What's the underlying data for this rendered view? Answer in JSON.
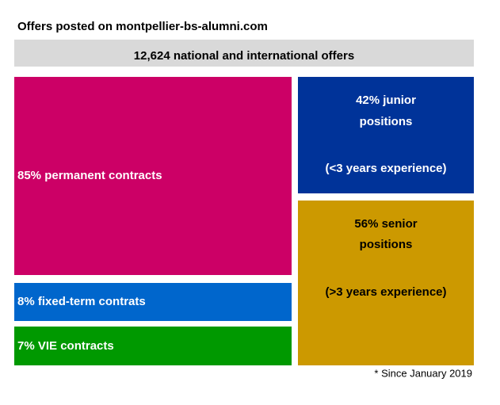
{
  "title": "Offers posted on montpellier-bs-alumni.com",
  "banner": "12,624 national and international offers",
  "boxes": [
    {
      "lines": [
        "85%  permanent contracts"
      ]
    },
    {
      "lines": [
        "8%  fixed-term contrats"
      ]
    },
    {
      "lines": [
        "7% VIE contracts"
      ]
    },
    {
      "lines": [
        "42% junior",
        "positions",
        "(<3 years experience)"
      ]
    },
    {
      "lines": [
        "56% senior",
        "positions",
        "(>3 years experience)"
      ]
    }
  ],
  "footnote": "* Since January 2019"
}
